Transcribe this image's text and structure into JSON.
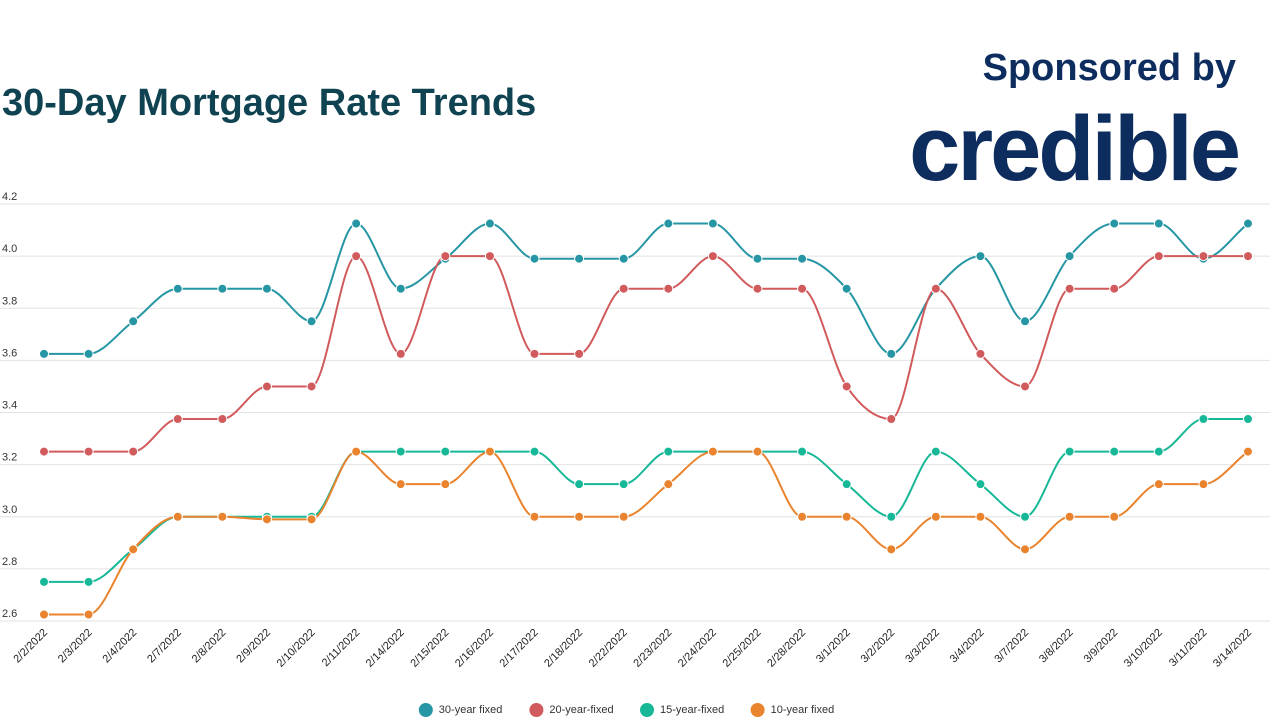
{
  "chart_data": {
    "type": "line",
    "title": "30-Day Mortgage Rate Trends",
    "sponsor_text": "Sponsored by",
    "sponsor_logo": "credible",
    "categories": [
      "2/2/2022",
      "2/3/2022",
      "2/4/2022",
      "2/7/2022",
      "2/8/2022",
      "2/9/2022",
      "2/10/2022",
      "2/11/2022",
      "2/14/2022",
      "2/15/2022",
      "2/16/2022",
      "2/17/2022",
      "2/18/2022",
      "2/22/2022",
      "2/23/2022",
      "2/24/2022",
      "2/25/2022",
      "2/28/2022",
      "3/1/2022",
      "3/2/2022",
      "3/3/2022",
      "3/4/2022",
      "3/7/2022",
      "3/8/2022",
      "3/9/2022",
      "3/10/2022",
      "3/11/2022",
      "3/14/2022"
    ],
    "series": [
      {
        "name": "30-year fixed",
        "color": "#2696a4",
        "values": [
          3.625,
          3.625,
          3.75,
          3.875,
          3.875,
          3.875,
          3.75,
          4.125,
          3.875,
          3.99,
          4.125,
          3.99,
          3.99,
          3.99,
          4.125,
          4.125,
          3.99,
          3.99,
          3.875,
          3.625,
          3.875,
          4.0,
          3.75,
          4.0,
          4.125,
          4.125,
          3.99,
          4.125
        ]
      },
      {
        "name": "20-year-fixed",
        "color": "#d15a5c",
        "values": [
          3.25,
          3.25,
          3.25,
          3.375,
          3.375,
          3.5,
          3.5,
          4.0,
          3.625,
          4.0,
          4.0,
          3.625,
          3.625,
          3.875,
          3.875,
          4.0,
          3.875,
          3.875,
          3.5,
          3.375,
          3.875,
          3.625,
          3.5,
          3.875,
          3.875,
          4.0,
          4.0,
          4.0
        ]
      },
      {
        "name": "15-year-fixed",
        "color": "#17b897",
        "values": [
          2.75,
          2.75,
          2.875,
          3.0,
          3.0,
          3.0,
          3.0,
          3.25,
          3.25,
          3.25,
          3.25,
          3.25,
          3.125,
          3.125,
          3.25,
          3.25,
          3.25,
          3.25,
          3.125,
          3.0,
          3.25,
          3.125,
          3.0,
          3.25,
          3.25,
          3.25,
          3.375,
          3.375
        ]
      },
      {
        "name": "10-year fixed",
        "color": "#e9832d",
        "values": [
          2.625,
          2.625,
          2.875,
          3.0,
          3.0,
          2.99,
          2.99,
          3.25,
          3.125,
          3.125,
          3.25,
          3.0,
          3.0,
          3.0,
          3.125,
          3.25,
          3.25,
          3.0,
          3.0,
          2.875,
          3.0,
          3.0,
          2.875,
          3.0,
          3.0,
          3.125,
          3.125,
          3.25
        ]
      }
    ],
    "ylim": [
      2.6,
      4.2
    ],
    "yticks": [
      2.6,
      2.8,
      {
        "value": 3.0,
        "label": "3.0"
      },
      3.2,
      3.4,
      3.6,
      3.8,
      {
        "value": 4.0,
        "label": "4.0"
      },
      4.2
    ],
    "grid": true
  }
}
